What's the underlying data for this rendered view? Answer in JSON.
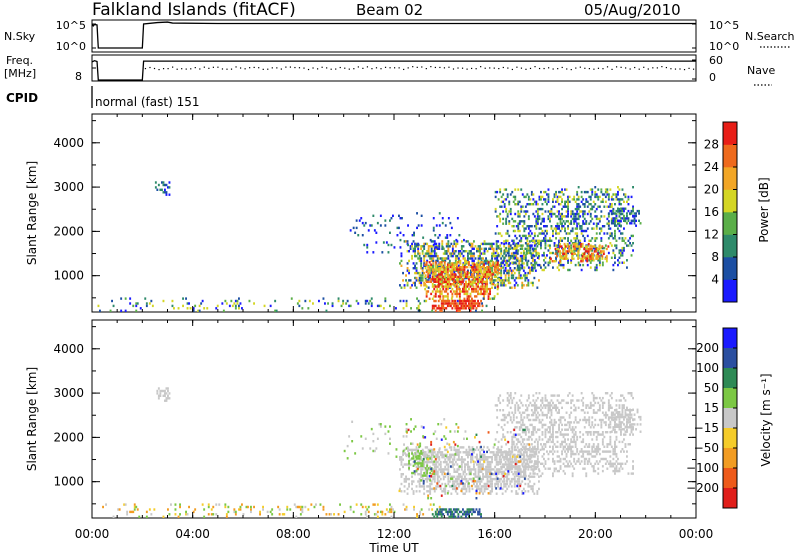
{
  "header": {
    "station": "Falkland Islands (fitACF)",
    "beam": "Beam 02",
    "date": "05/Aug/2010"
  },
  "time_axis": {
    "xlabel": "Time UT",
    "tick_labels": [
      "00:00",
      "04:00",
      "08:00",
      "12:00",
      "16:00",
      "20:00",
      "00:00"
    ],
    "tick_hours": [
      0,
      4,
      8,
      12,
      16,
      20,
      24
    ],
    "range_hours": [
      0,
      24
    ]
  },
  "chart_data": [
    {
      "type": "line",
      "panel": "nsky-nsearch",
      "left_labels": [
        "N.Sky"
      ],
      "left_ticks": [
        "10^5",
        "10^0"
      ],
      "right_labels": [
        "N.Search"
      ],
      "right_ticks": [
        "10^5",
        "10^0"
      ],
      "right_legend_style": "dotted",
      "gap_hours": [
        [
          0.25,
          2.0
        ]
      ],
      "series": [
        {
          "style": "solid",
          "x": [
            0,
            0.05,
            0.1,
            0.2,
            0.25,
            2.0,
            2.05,
            2.6,
            3.0,
            3.2,
            5,
            8,
            12,
            16,
            20,
            24
          ],
          "y": [
            5.0,
            4.6,
            4.9,
            4.8,
            0.0,
            0.0,
            5.0,
            5.3,
            5.4,
            5.2,
            5.1,
            5.1,
            5.1,
            5.1,
            5.1,
            5.1
          ]
        }
      ]
    },
    {
      "type": "line",
      "panel": "freq-nave",
      "left_labels": [
        "Freq.",
        "[MHz]"
      ],
      "left_ticks": [
        "8"
      ],
      "right_labels": [
        "Nave"
      ],
      "right_ticks": [
        "60",
        "0"
      ],
      "right_legend_style": "dotted",
      "series": [
        {
          "style": "solid",
          "x": [
            0,
            0.1,
            0.2,
            0.25,
            2.0,
            2.05,
            24
          ],
          "y": [
            11.5,
            12.3,
            11.8,
            0,
            0,
            12.0,
            12.0
          ]
        }
      ]
    },
    {
      "type": "table",
      "panel": "cpid",
      "label": "CPID",
      "text": "normal (fast) 151"
    },
    {
      "type": "heatmap",
      "panel": "power",
      "ylabel": "Slant Range [km]",
      "yticks": [
        1000,
        2000,
        3000,
        4000
      ],
      "ylim": [
        180,
        4650
      ],
      "colorbar": {
        "label": "Power [dB]",
        "ticks": [
          "4",
          "8",
          "12",
          "16",
          "20",
          "24",
          "28"
        ],
        "colors": [
          "#1a1aff",
          "#1c4fa3",
          "#2e8a6a",
          "#5aae48",
          "#d4d624",
          "#f2a626",
          "#ee6a1d",
          "#e81e17"
        ]
      },
      "regions": [
        {
          "t": [
            12.2,
            17.8
          ],
          "r": [
            700,
            1800
          ],
          "density": 0.55,
          "level": [
            0,
            5
          ]
        },
        {
          "t": [
            13.2,
            16.2
          ],
          "r": [
            450,
            1300
          ],
          "density": 0.7,
          "level": [
            4,
            7
          ]
        },
        {
          "t": [
            16.0,
            21.5
          ],
          "r": [
            1100,
            3000
          ],
          "density": 0.35,
          "level": [
            0,
            4
          ]
        },
        {
          "t": [
            18.2,
            20.5
          ],
          "r": [
            1300,
            1700
          ],
          "density": 0.5,
          "level": [
            4,
            7
          ]
        },
        {
          "t": [
            20.5,
            21.8
          ],
          "r": [
            2100,
            2500
          ],
          "density": 0.55,
          "level": [
            0,
            3
          ]
        },
        {
          "t": [
            2.5,
            3.1
          ],
          "r": [
            2800,
            3100
          ],
          "density": 0.4,
          "level": [
            0,
            2
          ]
        },
        {
          "t": [
            0.1,
            16.0
          ],
          "r": [
            180,
            480
          ],
          "density": 0.12,
          "level": [
            0,
            4
          ]
        },
        {
          "t": [
            13.5,
            15.5
          ],
          "r": [
            180,
            450
          ],
          "density": 0.8,
          "level": [
            6,
            7
          ]
        },
        {
          "t": [
            10.0,
            15.0
          ],
          "r": [
            1500,
            2400
          ],
          "density": 0.08,
          "level": [
            0,
            2
          ]
        }
      ]
    },
    {
      "type": "heatmap",
      "panel": "velocity",
      "ylabel": "Slant Range [km]",
      "yticks": [
        1000,
        2000,
        3000,
        4000
      ],
      "ylim": [
        180,
        4650
      ],
      "colorbar": {
        "label": "Velocity [m s⁻¹]",
        "ticks": [
          "200",
          "100",
          "50",
          "15",
          "−15",
          "−50",
          "−100",
          "−200"
        ],
        "colors": [
          "#1a1aff",
          "#2b4fa0",
          "#2e8a55",
          "#7cc844",
          "#c8c8c8",
          "#f5cc2a",
          "#f29c22",
          "#ee5a1a",
          "#e01e1a"
        ]
      },
      "regions": [
        {
          "t": [
            12.2,
            17.8
          ],
          "r": [
            700,
            1800
          ],
          "density": 0.6,
          "level": [
            4,
            4
          ]
        },
        {
          "t": [
            16.0,
            21.5
          ],
          "r": [
            1100,
            3000
          ],
          "density": 0.35,
          "level": [
            4,
            4
          ]
        },
        {
          "t": [
            20.5,
            21.8
          ],
          "r": [
            2100,
            2600
          ],
          "density": 0.5,
          "level": [
            4,
            4
          ]
        },
        {
          "t": [
            12.5,
            13.5
          ],
          "r": [
            1000,
            1700
          ],
          "density": 0.35,
          "level": [
            3,
            3
          ]
        },
        {
          "t": [
            12.0,
            17.5
          ],
          "r": [
            600,
            2200
          ],
          "density": 0.05,
          "level": [
            0,
            8
          ]
        },
        {
          "t": [
            0.1,
            14.0
          ],
          "r": [
            180,
            480
          ],
          "density": 0.13,
          "level": [
            3,
            6
          ]
        },
        {
          "t": [
            13.5,
            15.5
          ],
          "r": [
            180,
            400
          ],
          "density": 0.75,
          "level": [
            1,
            2
          ]
        },
        {
          "t": [
            2.5,
            3.1
          ],
          "r": [
            2800,
            3100
          ],
          "density": 0.4,
          "level": [
            4,
            4
          ]
        },
        {
          "t": [
            10.0,
            15.0
          ],
          "r": [
            1500,
            2400
          ],
          "density": 0.08,
          "level": [
            3,
            4
          ]
        }
      ]
    }
  ]
}
